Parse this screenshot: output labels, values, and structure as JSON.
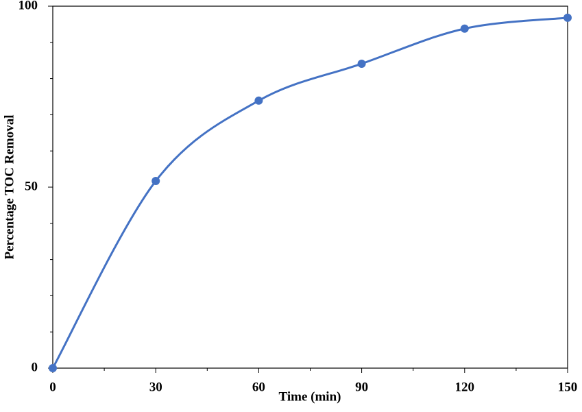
{
  "chart_data": {
    "type": "line",
    "x_label": "Time (min)",
    "y_label": "Percentage TOC Removal",
    "x": [
      0,
      30,
      60,
      90,
      120,
      150
    ],
    "series": [
      {
        "color": "#4472c4",
        "values": [
          0,
          51.7,
          73.9,
          84.1,
          93.8,
          96.8
        ]
      }
    ],
    "xlim": [
      0,
      150
    ],
    "xticks": [
      0,
      30,
      60,
      90,
      120,
      150
    ],
    "x_minor_ticks": [
      15,
      45,
      75,
      105,
      135
    ],
    "ylim": [
      0,
      100
    ],
    "yticks": [
      0,
      50,
      100
    ],
    "y_minor_ticks": [
      10,
      20,
      30,
      40,
      60,
      70,
      80,
      90
    ],
    "smooth": true,
    "markers": true
  }
}
